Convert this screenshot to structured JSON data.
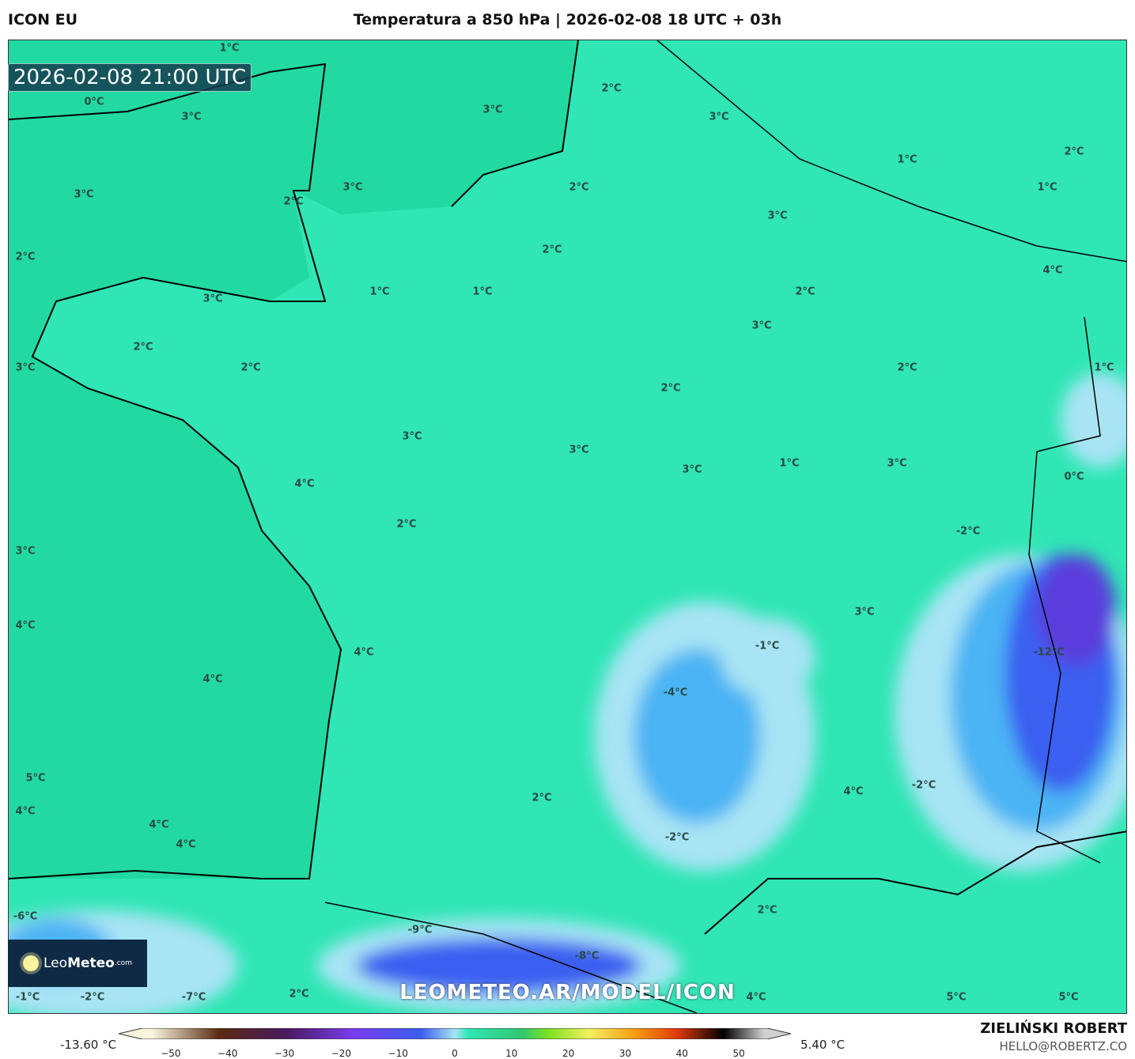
{
  "header": {
    "model": "ICON EU",
    "title": "Temperatura a 850 hPa | 2026-02-08 18 UTC + 03h"
  },
  "map": {
    "valid_time": "2026-02-08 21:00 UTC",
    "watermark_url": "LEOMETEO.AR/MODEL/ICON",
    "logo": {
      "text_light": "Leo",
      "text_bold": "Meteo",
      "suffix": ".com"
    },
    "colors": {
      "base": "#2fe6b4",
      "sea": "#22d9a2",
      "cold_light": "#a8e4f4",
      "cold_mid": "#4cb4f4",
      "cold_deep": "#3b5ef0",
      "cold_core": "#5a3cdc"
    },
    "labels": [
      "1°C",
      "0°C",
      "3°C",
      "3°C",
      "2°C",
      "3°C",
      "1°C",
      "2°C",
      "1°C",
      "3°C",
      "2°C",
      "3°C",
      "2°C",
      "3°C",
      "2°C",
      "2°C",
      "4°C",
      "3°C",
      "1°C",
      "1°C",
      "2°C",
      "3°C",
      "2°C",
      "3°C",
      "2°C",
      "2°C",
      "1°C",
      "2°C",
      "3°C",
      "3°C",
      "3°C",
      "1°C",
      "3°C",
      "0°C",
      "4°C",
      "2°C",
      "-2°C",
      "3°C",
      "3°C",
      "4°C",
      "-1°C",
      "4°C",
      "-12°C",
      "4°C",
      "-4°C",
      "5°C",
      "4°C",
      "-2°C",
      "2°C",
      "4°C",
      "4°C",
      "4°C",
      "-2°C",
      "2°C",
      "-6°C",
      "-9°C",
      "-8°C",
      "-1°C",
      "-2°C",
      "-7°C",
      "2°C",
      "4°C",
      "5°C",
      "5°C"
    ]
  },
  "colorbar": {
    "min_label": "-13.60 °C",
    "max_label": "5.40 °C",
    "ticks": [
      "−50",
      "−40",
      "−30",
      "−20",
      "−10",
      "0",
      "10",
      "20",
      "30",
      "40",
      "50"
    ],
    "range": [
      -55,
      55
    ]
  },
  "credits": {
    "author": "ZIELIŃSKI ROBERT",
    "email": "HELLO@ROBERTZ.CO"
  }
}
